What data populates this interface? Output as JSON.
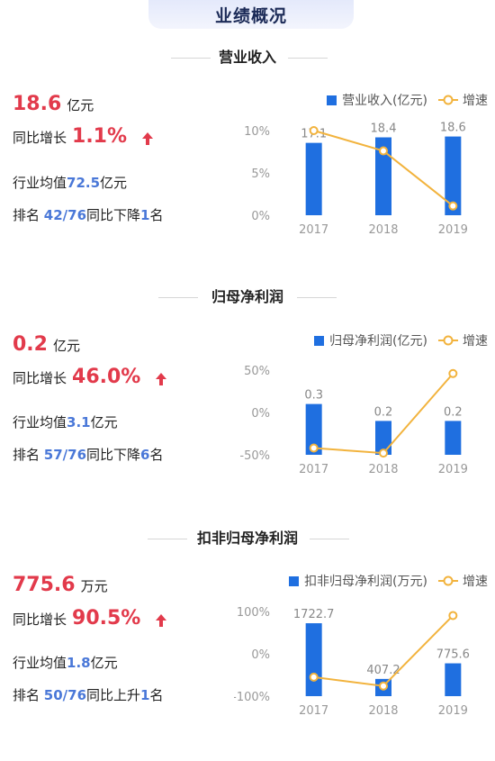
{
  "header": {
    "title": "业绩概况"
  },
  "colors": {
    "bar": "#1f6fe0",
    "line": "#f2b33d",
    "accent_red": "#e23a4b",
    "accent_blue": "#4a78d8"
  },
  "sections": [
    {
      "title": "营业收入",
      "value": "18.6",
      "unit": "亿元",
      "growth_label": "同比增长",
      "growth": "1.1%",
      "industry_label": "行业均值",
      "industry_value": "72.5",
      "industry_unit": "亿元",
      "rank_label": "排名",
      "rank": "42/76",
      "rank_change_label": "同比下降",
      "rank_change": "1",
      "rank_suffix": "名",
      "legend_bar": "营业收入(亿元)",
      "legend_line": "增速"
    },
    {
      "title": "归母净利润",
      "value": "0.2",
      "unit": "亿元",
      "growth_label": "同比增长",
      "growth": "46.0%",
      "industry_label": "行业均值",
      "industry_value": "3.1",
      "industry_unit": "亿元",
      "rank_label": "排名",
      "rank": "57/76",
      "rank_change_label": "同比下降",
      "rank_change": "6",
      "rank_suffix": "名",
      "legend_bar": "归母净利润(亿元)",
      "legend_line": "增速"
    },
    {
      "title": "扣非归母净利润",
      "value": "775.6",
      "unit": "万元",
      "growth_label": "同比增长",
      "growth": "90.5%",
      "industry_label": "行业均值",
      "industry_value": "1.8",
      "industry_unit": "亿元",
      "rank_label": "排名",
      "rank": "50/76",
      "rank_change_label": "同比上升",
      "rank_change": "1",
      "rank_suffix": "名",
      "legend_bar": "扣非归母净利润(万元)",
      "legend_line": "增速"
    }
  ],
  "chart_data": [
    {
      "type": "bar",
      "categories": [
        "2017",
        "2018",
        "2019"
      ],
      "series": [
        {
          "name": "营业收入(亿元)",
          "type": "bar",
          "values": [
            17.1,
            18.4,
            18.6
          ],
          "labels": [
            "17.1",
            "18.4",
            "18.6"
          ]
        },
        {
          "name": "增速",
          "type": "line",
          "values": [
            10,
            7.6,
            1.1
          ]
        }
      ],
      "yaxis": {
        "ticks": [
          "10%",
          "5%",
          "0%"
        ],
        "tick_values": [
          10,
          5,
          0
        ],
        "ylim": [
          0,
          10
        ]
      },
      "bar_ylim": [
        0,
        20
      ],
      "legend": "top-right"
    },
    {
      "type": "bar",
      "categories": [
        "2017",
        "2018",
        "2019"
      ],
      "series": [
        {
          "name": "归母净利润(亿元)",
          "type": "bar",
          "values": [
            0.3,
            0.2,
            0.2
          ],
          "labels": [
            "0.3",
            "0.2",
            "0.2"
          ]
        },
        {
          "name": "增速",
          "type": "line",
          "values": [
            -42,
            -48,
            46
          ]
        }
      ],
      "yaxis": {
        "ticks": [
          "50%",
          "0%",
          "-50%"
        ],
        "tick_values": [
          50,
          0,
          -50
        ],
        "ylim": [
          -50,
          50
        ]
      },
      "bar_ylim": [
        0,
        0.5
      ],
      "legend": "top-right"
    },
    {
      "type": "bar",
      "categories": [
        "2017",
        "2018",
        "2019"
      ],
      "series": [
        {
          "name": "扣非归母净利润(万元)",
          "type": "bar",
          "values": [
            1722.7,
            407.2,
            775.6
          ],
          "labels": [
            "1722.7",
            "407.2",
            "775.6"
          ]
        },
        {
          "name": "增速",
          "type": "line",
          "values": [
            -55,
            -76,
            90.5
          ]
        }
      ],
      "yaxis": {
        "ticks": [
          "100%",
          "0%",
          "-100%"
        ],
        "tick_values": [
          100,
          0,
          -100
        ],
        "ylim": [
          -100,
          100
        ]
      },
      "bar_ylim": [
        0,
        2000
      ],
      "legend": "top-right"
    }
  ]
}
